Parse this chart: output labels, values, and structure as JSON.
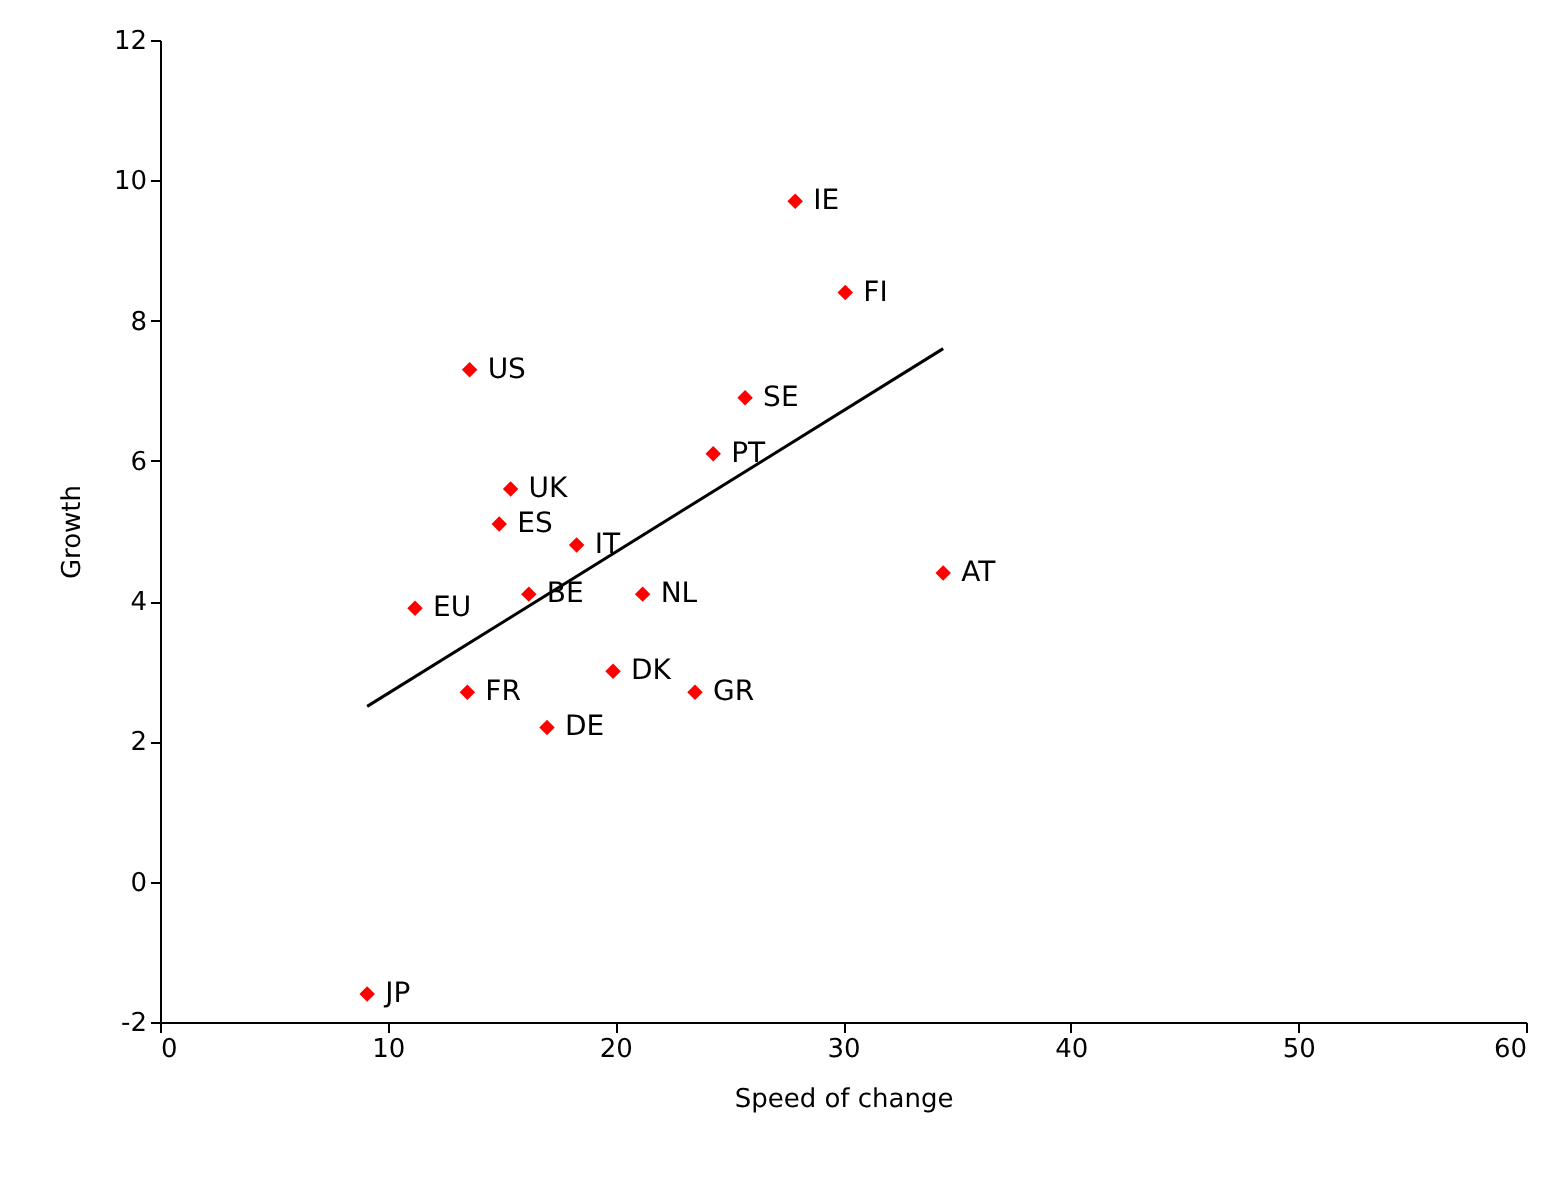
{
  "chart_data": {
    "type": "scatter",
    "xlabel": "Speed of change",
    "ylabel": "Growth",
    "xlim": [
      0,
      60
    ],
    "xticks": [
      0,
      10,
      20,
      30,
      40,
      50,
      60
    ],
    "ylim": [
      -2,
      12
    ],
    "yticks": [
      -2,
      0,
      2,
      4,
      6,
      8,
      10,
      12
    ],
    "grid": false,
    "series": [
      {
        "marker": "diamond",
        "color": "#ff0000",
        "x": [
          27.9,
          30.1,
          13.6,
          25.7,
          24.3,
          15.4,
          14.9,
          18.3,
          16.2,
          21.2,
          34.4,
          11.2,
          19.9,
          23.5,
          13.5,
          17.0,
          9.1
        ],
        "values": [
          9.7,
          8.4,
          7.3,
          6.9,
          6.1,
          5.6,
          5.1,
          4.8,
          4.1,
          4.1,
          4.4,
          3.9,
          3.0,
          2.7,
          2.7,
          2.2,
          -1.6
        ]
      },
      {
        "type": "line",
        "color": "#000000",
        "x": [
          9.1,
          34.4
        ],
        "values": [
          2.5,
          7.6
        ]
      }
    ],
    "annotations": [
      {
        "text": "IE",
        "x": 27.9,
        "y": 9.7
      },
      {
        "text": "FI",
        "x": 30.1,
        "y": 8.4
      },
      {
        "text": "US",
        "x": 13.6,
        "y": 7.3
      },
      {
        "text": "SE",
        "x": 25.7,
        "y": 6.9
      },
      {
        "text": "PT",
        "x": 24.3,
        "y": 6.1
      },
      {
        "text": "UK",
        "x": 15.4,
        "y": 5.6
      },
      {
        "text": "ES",
        "x": 14.9,
        "y": 5.1
      },
      {
        "text": "IT",
        "x": 18.3,
        "y": 4.8
      },
      {
        "text": "BE",
        "x": 16.2,
        "y": 4.1
      },
      {
        "text": "NL",
        "x": 21.2,
        "y": 4.1
      },
      {
        "text": "AT",
        "x": 34.4,
        "y": 4.4
      },
      {
        "text": "EU",
        "x": 11.2,
        "y": 3.9
      },
      {
        "text": "DK",
        "x": 19.9,
        "y": 3.0
      },
      {
        "text": "GR",
        "x": 23.5,
        "y": 2.7
      },
      {
        "text": "FR",
        "x": 13.5,
        "y": 2.7
      },
      {
        "text": "DE",
        "x": 17.0,
        "y": 2.2
      },
      {
        "text": "JP",
        "x": 9.1,
        "y": -1.6
      }
    ]
  }
}
